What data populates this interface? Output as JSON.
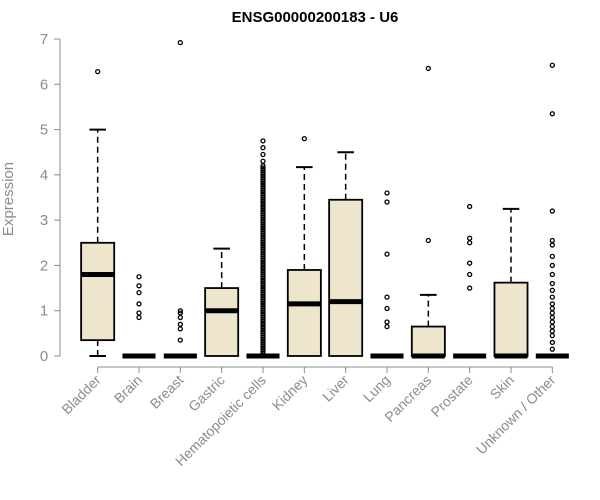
{
  "chart_data": {
    "type": "boxplot",
    "title": "ENSG00000200183 - U6",
    "xlabel": "",
    "ylabel": "Expression",
    "ylim": [
      0,
      7
    ],
    "yticks": [
      0,
      1,
      2,
      3,
      4,
      5,
      6,
      7
    ],
    "grid": false,
    "box_fill": "#ede6cd",
    "box_stroke": "#000000",
    "categories": [
      "Bladder",
      "Brain",
      "Breast",
      "Gastric",
      "Hematopoietic cells",
      "Kidney",
      "Liver",
      "Lung",
      "Pancreas",
      "Prostate",
      "Skin",
      "Unknown / Other"
    ],
    "boxes": [
      {
        "category": "Bladder",
        "whisker_low": 0,
        "q1": 0.35,
        "median": 1.8,
        "q3": 2.5,
        "whisker_high": 5.0,
        "outliers": [
          6.28
        ]
      },
      {
        "category": "Brain",
        "whisker_low": 0,
        "q1": 0,
        "median": 0,
        "q3": 0,
        "whisker_high": 0,
        "outliers": [
          0.85,
          0.95,
          1.15,
          1.4,
          1.55,
          1.75
        ]
      },
      {
        "category": "Breast",
        "whisker_low": 0,
        "q1": 0,
        "median": 0,
        "q3": 0,
        "whisker_high": 0,
        "outliers": [
          0.35,
          0.6,
          0.7,
          0.85,
          0.95,
          1.0,
          6.92
        ]
      },
      {
        "category": "Gastric",
        "whisker_low": 0,
        "q1": 0,
        "median": 1.0,
        "q3": 1.5,
        "whisker_high": 2.37,
        "outliers": []
      },
      {
        "category": "Hematopoietic cells",
        "whisker_low": 0,
        "q1": 0,
        "median": 0,
        "q3": 0,
        "whisker_high": 0,
        "outliers": [
          0.05,
          0.1,
          0.15,
          0.2,
          0.25,
          0.3,
          0.35,
          0.4,
          0.45,
          0.5,
          0.55,
          0.6,
          0.65,
          0.7,
          0.75,
          0.8,
          0.85,
          0.9,
          0.95,
          1.0,
          1.05,
          1.1,
          1.15,
          1.2,
          1.25,
          1.3,
          1.35,
          1.4,
          1.45,
          1.5,
          1.55,
          1.6,
          1.65,
          1.7,
          1.75,
          1.8,
          1.85,
          1.9,
          1.95,
          2.0,
          2.05,
          2.1,
          2.15,
          2.2,
          2.25,
          2.3,
          2.35,
          2.4,
          2.45,
          2.5,
          2.55,
          2.6,
          2.65,
          2.7,
          2.75,
          2.8,
          2.85,
          2.9,
          2.95,
          3.0,
          3.05,
          3.1,
          3.15,
          3.2,
          3.25,
          3.3,
          3.35,
          3.4,
          3.45,
          3.5,
          3.55,
          3.6,
          3.65,
          3.7,
          3.75,
          3.8,
          3.85,
          3.9,
          3.95,
          4.0,
          4.05,
          4.1,
          4.15,
          4.2,
          4.3,
          4.45,
          4.6,
          4.75
        ]
      },
      {
        "category": "Kidney",
        "whisker_low": 0,
        "q1": 0,
        "median": 1.15,
        "q3": 1.9,
        "whisker_high": 4.17,
        "outliers": [
          4.8
        ]
      },
      {
        "category": "Liver",
        "whisker_low": 0,
        "q1": 0,
        "median": 1.2,
        "q3": 3.45,
        "whisker_high": 4.5,
        "outliers": []
      },
      {
        "category": "Lung",
        "whisker_low": 0,
        "q1": 0,
        "median": 0,
        "q3": 0,
        "whisker_high": 0,
        "outliers": [
          0.65,
          0.75,
          1.05,
          1.3,
          2.25,
          3.4,
          3.6
        ]
      },
      {
        "category": "Pancreas",
        "whisker_low": 0,
        "q1": 0,
        "median": 0,
        "q3": 0.65,
        "whisker_high": 1.35,
        "outliers": [
          2.55,
          6.35
        ]
      },
      {
        "category": "Prostate",
        "whisker_low": 0,
        "q1": 0,
        "median": 0,
        "q3": 0,
        "whisker_high": 0,
        "outliers": [
          1.5,
          1.8,
          2.05,
          2.5,
          2.6,
          3.3
        ]
      },
      {
        "category": "Skin",
        "whisker_low": 0,
        "q1": 0,
        "median": 0,
        "q3": 1.62,
        "whisker_high": 3.25,
        "outliers": []
      },
      {
        "category": "Unknown / Other",
        "whisker_low": 0,
        "q1": 0,
        "median": 0,
        "q3": 0,
        "whisker_high": 0,
        "outliers": [
          0.15,
          0.3,
          0.45,
          0.55,
          0.65,
          0.75,
          0.85,
          0.95,
          1.05,
          1.15,
          1.3,
          1.45,
          1.6,
          1.8,
          2.0,
          2.2,
          2.45,
          2.55,
          3.2,
          5.35,
          6.42
        ]
      }
    ]
  }
}
